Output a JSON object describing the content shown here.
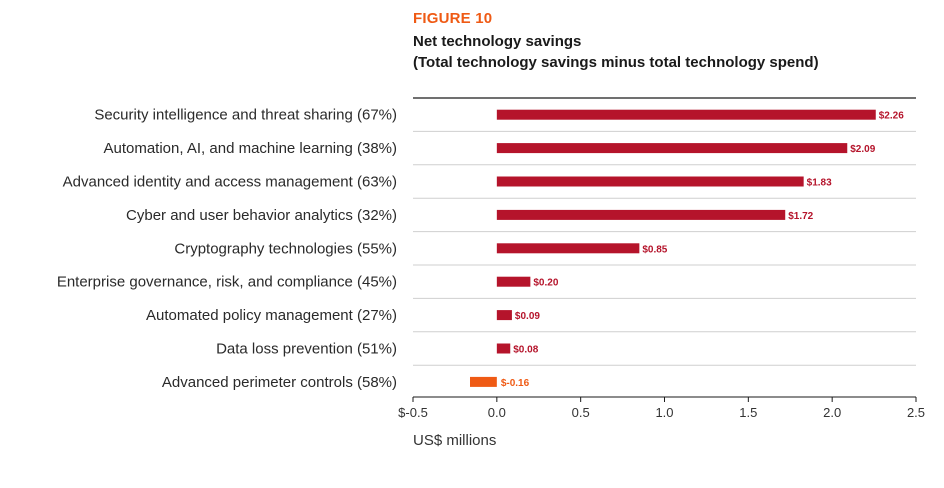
{
  "header": {
    "figure_label": "FIGURE 10",
    "title": "Net technology savings",
    "subtitle": "(Total technology savings minus total technology spend)"
  },
  "chart_data": {
    "type": "bar",
    "orientation": "horizontal",
    "title": "Net technology savings",
    "subtitle": "(Total technology savings minus total technology spend)",
    "xlabel": "US$ millions",
    "ylabel": "",
    "xlim": [
      -0.5,
      2.5
    ],
    "ticks": [
      -0.5,
      0,
      0.5,
      1.0,
      1.5,
      2.0,
      2.5
    ],
    "tick_labels": [
      "$-0.5",
      "0.0",
      "0.5",
      "1.0",
      "1.5",
      "2.0",
      "2.5"
    ],
    "categories": [
      "Security intelligence and threat sharing (67%)",
      "Automation, AI, and machine learning (38%)",
      "Advanced identity and access management (63%)",
      "Cyber and user behavior analytics (32%)",
      "Cryptography technologies (55%)",
      "Enterprise governance, risk, and compliance (45%)",
      "Automated policy management (27%)",
      "Data loss prevention (51%)",
      "Advanced perimeter controls (58%)"
    ],
    "values": [
      2.26,
      2.09,
      1.83,
      1.72,
      0.85,
      0.2,
      0.09,
      0.08,
      -0.16
    ],
    "value_labels": [
      "$2.26",
      "$2.09",
      "$1.83",
      "$1.72",
      "$0.85",
      "$0.20",
      "$0.09",
      "$0.08",
      "$-0.16"
    ],
    "colors": {
      "positive": "#b5142b",
      "negative": "#ef5a14",
      "figure_label": "#ef5a14"
    }
  }
}
